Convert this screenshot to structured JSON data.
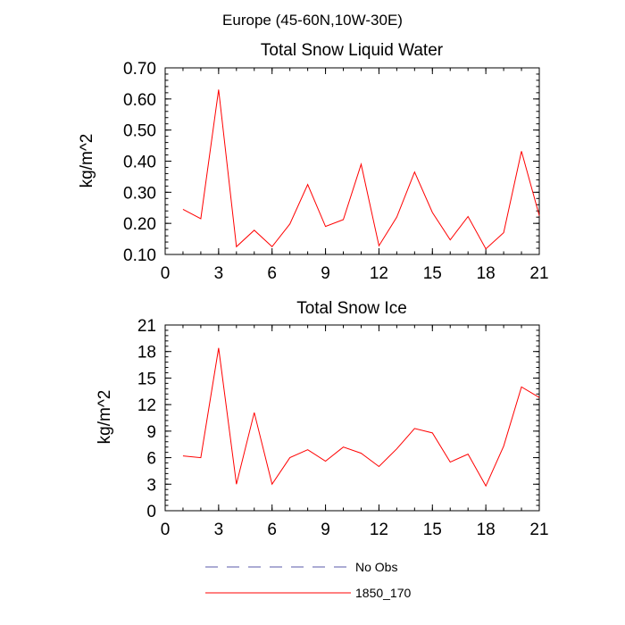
{
  "figure_title": "Europe (45-60N,10W-30E)",
  "chart_data": [
    {
      "type": "line",
      "title": "Total Snow Liquid Water",
      "xlabel": "",
      "ylabel": "kg/m^2",
      "xlim": [
        0,
        21
      ],
      "ylim": [
        0.1,
        0.7
      ],
      "xticks": [
        "0",
        "3",
        "6",
        "9",
        "12",
        "15",
        "18",
        "21"
      ],
      "yticks": [
        "0.10",
        "0.20",
        "0.30",
        "0.40",
        "0.50",
        "0.60",
        "0.70"
      ],
      "x": [
        1,
        2,
        3,
        4,
        5,
        6,
        7,
        8,
        9,
        10,
        11,
        12,
        13,
        14,
        15,
        16,
        17,
        18,
        19,
        20,
        21
      ],
      "series": [
        {
          "name": "1850_170",
          "color": "#ff0000",
          "values": [
            0.245,
            0.215,
            0.63,
            0.125,
            0.178,
            0.125,
            0.198,
            0.325,
            0.19,
            0.212,
            0.39,
            0.128,
            0.22,
            0.365,
            0.235,
            0.147,
            0.222,
            0.118,
            0.17,
            0.432,
            0.225
          ]
        }
      ]
    },
    {
      "type": "line",
      "title": "Total Snow Ice",
      "xlabel": "",
      "ylabel": "kg/m^2",
      "xlim": [
        0,
        21
      ],
      "ylim": [
        0,
        21
      ],
      "xticks": [
        "0",
        "3",
        "6",
        "9",
        "12",
        "15",
        "18",
        "21"
      ],
      "yticks": [
        "0",
        "3",
        "6",
        "9",
        "12",
        "15",
        "18",
        "21"
      ],
      "x": [
        1,
        2,
        3,
        4,
        5,
        6,
        7,
        8,
        9,
        10,
        11,
        12,
        13,
        14,
        15,
        16,
        17,
        18,
        19,
        20,
        21
      ],
      "series": [
        {
          "name": "1850_170",
          "color": "#ff0000",
          "values": [
            6.2,
            6.0,
            18.4,
            3.0,
            11.1,
            3.0,
            6.0,
            6.9,
            5.6,
            7.2,
            6.5,
            5.0,
            7.0,
            9.3,
            8.8,
            5.5,
            6.4,
            2.8,
            7.3,
            14.0,
            12.8
          ]
        }
      ]
    }
  ],
  "legend": {
    "placement": "bottom",
    "items": [
      {
        "label": "No Obs",
        "color": "#5a5aa8",
        "dash": "dashed"
      },
      {
        "label": "1850_170",
        "color": "#ff0000",
        "dash": "solid"
      }
    ]
  }
}
